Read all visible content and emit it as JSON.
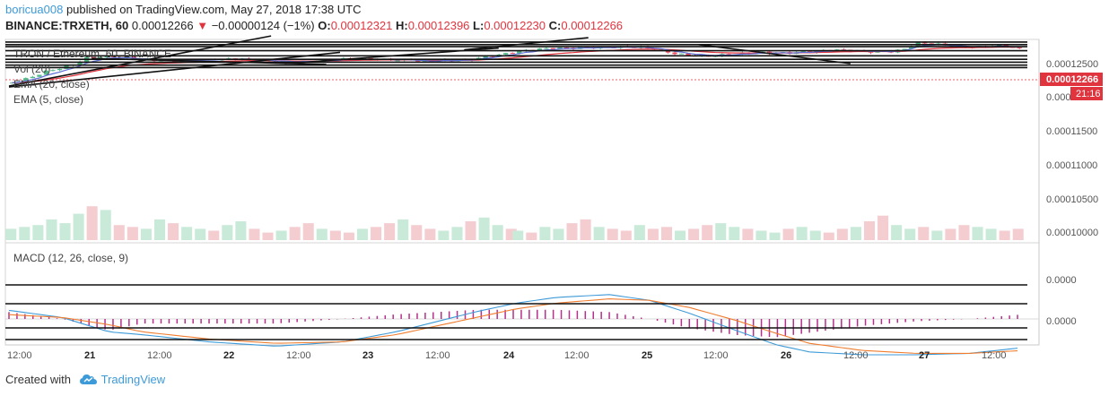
{
  "header": {
    "user": "boricua008",
    "published_text": " published on TradingView.com, May 27, 2018 17:38 UTC",
    "symbol_line": "BINANCE:TRXETH, 60",
    "last_price": "0.00012266",
    "change": "−0.00000124 (−1%)",
    "o_label": "O:",
    "o_value": "0.00012321",
    "h_label": "H:",
    "h_value": "0.00012396",
    "l_label": "L:",
    "l_value": "0.00012230",
    "c_label": "C:",
    "c_value": "0.00012266"
  },
  "legend": {
    "pair": "TRON / Ethereum, 60, BINANCE",
    "vol": "Vol (20)",
    "ema20": "EMA (20, close)",
    "ema5": "EMA (5, close)",
    "macd": "MACD (12, 26, close, 9)"
  },
  "price_scale": {
    "labels": [
      "0.00012500",
      "0.000",
      "0.00011500",
      "0.00011000",
      "0.00010500",
      "0.00010000"
    ],
    "current_price_label": "0.00012266",
    "countdown_label": "21:16"
  },
  "macd_scale": {
    "labels": [
      "0.0000",
      "0.0000"
    ]
  },
  "time_axis": {
    "labels": [
      "12:00",
      "21",
      "12:00",
      "22",
      "12:00",
      "23",
      "12:00",
      "24",
      "12:00",
      "25",
      "12:00",
      "26",
      "12:00",
      "27",
      "12:00"
    ]
  },
  "footer": {
    "created": "Created with",
    "brand": "TradingView"
  },
  "colors": {
    "up": "#53b987",
    "down": "#eb4d5c",
    "ema20": "#e0343e",
    "ema5": "#5e6fd6",
    "macd_line": "#3d9ad8",
    "signal_line": "#f07d2f",
    "hist": "#b5308a",
    "price_tag": "#e0343e",
    "brand": "#3d9ad8"
  },
  "chart_data": {
    "type": "candlestick",
    "title": "TRON / Ethereum, 60, BINANCE",
    "ylim": [
      9.8e-06,
      0.0001275
    ],
    "price_ticks": [
      0.000125,
      0.00012,
      0.000115,
      0.00011,
      0.000105,
      0.0001
    ],
    "last_close": 0.00012266,
    "ohlc_last": {
      "o": 0.00012321,
      "h": 0.00012396,
      "l": 0.0001223,
      "c": 0.00012266
    },
    "price_path": [
      [
        0,
        0.0001025
      ],
      [
        12,
        0.0001045
      ],
      [
        25,
        0.0001085
      ],
      [
        40,
        0.000112
      ],
      [
        55,
        0.0001175
      ],
      [
        70,
        0.000118
      ],
      [
        95,
        0.000115
      ],
      [
        115,
        0.0001155
      ],
      [
        140,
        0.000116
      ],
      [
        170,
        0.0001155
      ],
      [
        200,
        0.000115
      ],
      [
        230,
        0.000115
      ],
      [
        265,
        0.0001165
      ],
      [
        290,
        0.000116
      ],
      [
        300,
        0.000114
      ],
      [
        330,
        0.0001155
      ],
      [
        345,
        0.000118
      ],
      [
        365,
        0.00012
      ],
      [
        395,
        0.000122
      ],
      [
        420,
        0.0001235
      ],
      [
        440,
        0.000123
      ],
      [
        465,
        0.000122
      ],
      [
        485,
        0.0001195
      ],
      [
        510,
        0.000118
      ],
      [
        530,
        0.0001185
      ],
      [
        550,
        0.00012
      ],
      [
        575,
        0.0001205
      ],
      [
        600,
        0.0001208
      ],
      [
        620,
        0.0001205
      ],
      [
        640,
        0.000121
      ],
      [
        650,
        0.000122
      ],
      [
        660,
        0.0001255
      ],
      [
        675,
        0.000124
      ],
      [
        690,
        0.000123
      ],
      [
        705,
        0.0001235
      ],
      [
        720,
        0.0001245
      ],
      [
        735,
        0.0001225
      ]
    ],
    "volume": [
      0.3,
      0.35,
      0.4,
      0.55,
      0.45,
      0.7,
      0.9,
      0.8,
      0.4,
      0.35,
      0.3,
      0.55,
      0.45,
      0.35,
      0.3,
      0.25,
      0.4,
      0.5,
      0.3,
      0.2,
      0.25,
      0.35,
      0.45,
      0.3,
      0.25,
      0.2,
      0.3,
      0.35,
      0.45,
      0.55,
      0.4,
      0.3,
      0.25,
      0.35,
      0.5,
      0.6,
      0.4,
      0.3,
      0.25,
      0.2,
      0.35,
      0.3,
      0.45,
      0.55,
      0.35,
      0.3,
      0.25,
      0.4,
      0.3,
      0.35,
      0.25,
      0.3,
      0.4,
      0.45,
      0.35,
      0.3,
      0.25,
      0.2,
      0.3,
      0.35,
      0.25,
      0.2,
      0.3,
      0.35,
      0.5,
      0.65,
      0.4,
      0.3,
      0.35,
      0.25,
      0.3,
      0.4,
      0.35,
      0.3,
      0.25,
      0.3
    ],
    "macd_path": [
      [
        0,
        0.3
      ],
      [
        40,
        0.05
      ],
      [
        75,
        -0.45
      ],
      [
        100,
        -0.55
      ],
      [
        150,
        -0.8
      ],
      [
        200,
        -0.95
      ],
      [
        250,
        -0.8
      ],
      [
        290,
        -0.45
      ],
      [
        320,
        -0.1
      ],
      [
        350,
        0.25
      ],
      [
        380,
        0.55
      ],
      [
        410,
        0.75
      ],
      [
        450,
        0.85
      ],
      [
        480,
        0.65
      ],
      [
        510,
        0.2
      ],
      [
        545,
        -0.4
      ],
      [
        575,
        -0.9
      ],
      [
        600,
        -1.15
      ],
      [
        640,
        -1.25
      ],
      [
        680,
        -1.25
      ],
      [
        720,
        -1.2
      ],
      [
        760,
        -1.0
      ]
    ],
    "signal_path": [
      [
        0,
        0.15
      ],
      [
        40,
        0.05
      ],
      [
        75,
        -0.2
      ],
      [
        100,
        -0.45
      ],
      [
        150,
        -0.7
      ],
      [
        200,
        -0.85
      ],
      [
        250,
        -0.8
      ],
      [
        290,
        -0.55
      ],
      [
        320,
        -0.25
      ],
      [
        350,
        0.05
      ],
      [
        380,
        0.35
      ],
      [
        410,
        0.55
      ],
      [
        450,
        0.7
      ],
      [
        480,
        0.65
      ],
      [
        510,
        0.4
      ],
      [
        545,
        -0.05
      ],
      [
        575,
        -0.5
      ],
      [
        600,
        -0.85
      ],
      [
        640,
        -1.1
      ],
      [
        680,
        -1.2
      ],
      [
        720,
        -1.2
      ],
      [
        760,
        -1.1
      ]
    ],
    "horizontal_levels": [
      0.000126,
      0.0001245,
      0.0001233,
      0.000121,
      0.000118,
      0.000116,
      0.0001143,
      0.0001126,
      0.0001112
    ],
    "trendlines": [
      [
        [
          0,
          0.0001005
        ],
        [
          190,
          0.0001295
        ]
      ],
      [
        [
          0,
          0.0001
        ],
        [
          240,
          0.00012
        ]
      ],
      [
        [
          60,
          0.0001165
        ],
        [
          230,
          0.000113
        ]
      ],
      [
        [
          200,
          0.0001135
        ],
        [
          355,
          0.0001225
        ]
      ],
      [
        [
          330,
          0.0001215
        ],
        [
          420,
          0.0001285
        ]
      ],
      [
        [
          500,
          0.0001245
        ],
        [
          610,
          0.0001135
        ]
      ]
    ]
  }
}
